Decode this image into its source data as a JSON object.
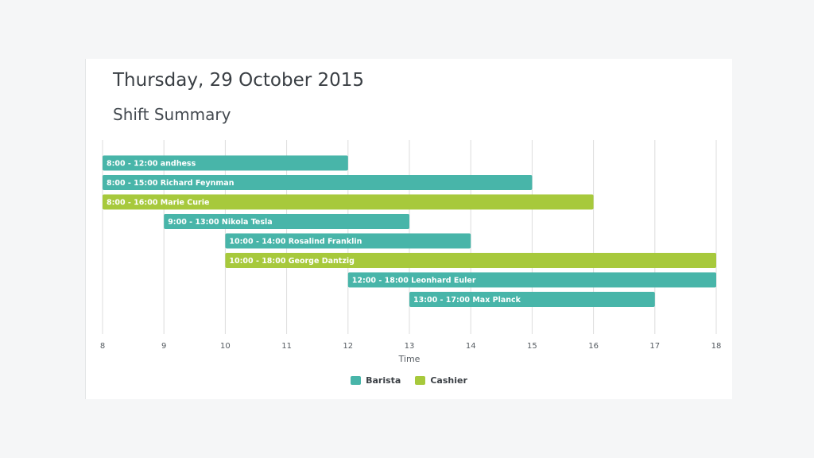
{
  "header": {
    "date": "Thursday, 29 October 2015",
    "section": "Shift Summary"
  },
  "colors": {
    "barista": "#48b5a9",
    "cashier": "#a7c93c",
    "grid": "#dcdcdc"
  },
  "chart_data": {
    "type": "bar",
    "orientation": "horizontal-range",
    "title": "",
    "xlabel": "Time",
    "ylabel": "",
    "xlim": [
      8,
      18
    ],
    "x_ticks": [
      8,
      9,
      10,
      11,
      12,
      13,
      14,
      15,
      16,
      17,
      18
    ],
    "grid": true,
    "legend_position": "bottom-center",
    "series": [
      {
        "name": "Barista",
        "color": "#48b5a9"
      },
      {
        "name": "Cashier",
        "color": "#a7c93c"
      }
    ],
    "shifts": [
      {
        "label": "8:00 - 12:00 andhess",
        "start": 8,
        "end": 12,
        "role": "Barista"
      },
      {
        "label": "8:00 - 15:00 Richard Feynman",
        "start": 8,
        "end": 15,
        "role": "Barista"
      },
      {
        "label": "8:00 - 16:00 Marie Curie",
        "start": 8,
        "end": 16,
        "role": "Cashier"
      },
      {
        "label": "9:00 - 13:00 Nikola Tesla",
        "start": 9,
        "end": 13,
        "role": "Barista"
      },
      {
        "label": "10:00 - 14:00 Rosalind Franklin",
        "start": 10,
        "end": 14,
        "role": "Barista"
      },
      {
        "label": "10:00 - 18:00 George Dantzig",
        "start": 10,
        "end": 18,
        "role": "Cashier"
      },
      {
        "label": "12:00 - 18:00 Leonhard Euler",
        "start": 12,
        "end": 18,
        "role": "Barista"
      },
      {
        "label": "13:00 - 17:00 Max Planck",
        "start": 13,
        "end": 17,
        "role": "Barista"
      }
    ]
  }
}
